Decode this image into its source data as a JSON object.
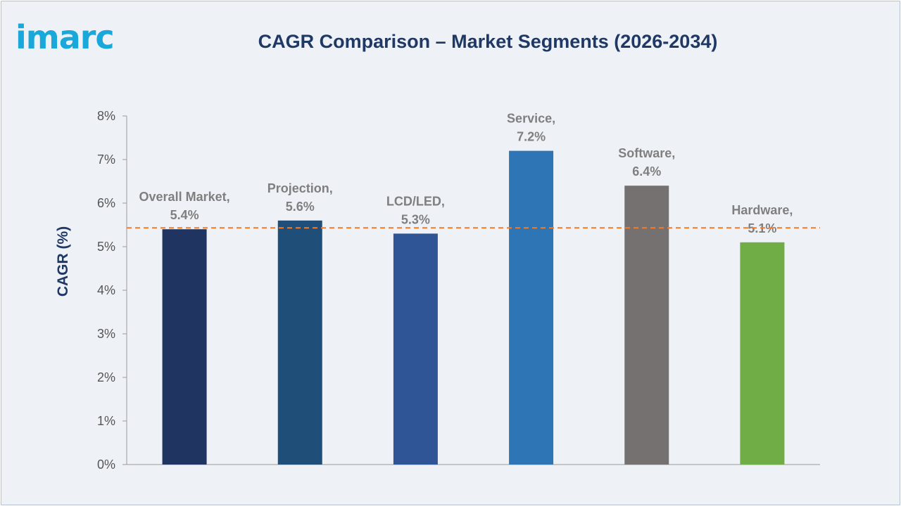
{
  "logo": {
    "text": "imarc"
  },
  "chart_data": {
    "type": "bar",
    "title": "CAGR Comparison – Market Segments (2026-2034)",
    "ylabel": "CAGR (%)",
    "xlabel": "",
    "ylim": [
      0,
      8
    ],
    "yticks": [
      "0%",
      "1%",
      "2%",
      "3%",
      "4%",
      "5%",
      "6%",
      "7%",
      "8%"
    ],
    "reference_line": {
      "value": 5.4,
      "style": "dashed",
      "color": "#ed7d31"
    },
    "bars": [
      {
        "category": "Overall Market,",
        "value": 5.4,
        "label": "5.4%",
        "color": "#1f3460"
      },
      {
        "category": "Projection,",
        "value": 5.6,
        "label": "5.6%",
        "color": "#1f4e79"
      },
      {
        "category": "LCD/LED,",
        "value": 5.3,
        "label": "5.3%",
        "color": "#2f5597"
      },
      {
        "category": "Service,",
        "value": 7.2,
        "label": "7.2%",
        "color": "#2e75b6"
      },
      {
        "category": "Software,",
        "value": 6.4,
        "label": "6.4%",
        "color": "#767171"
      },
      {
        "category": "Hardware,",
        "value": 5.1,
        "label": "5.1%",
        "color": "#70ad47"
      }
    ],
    "grid": false,
    "legend": "none"
  }
}
